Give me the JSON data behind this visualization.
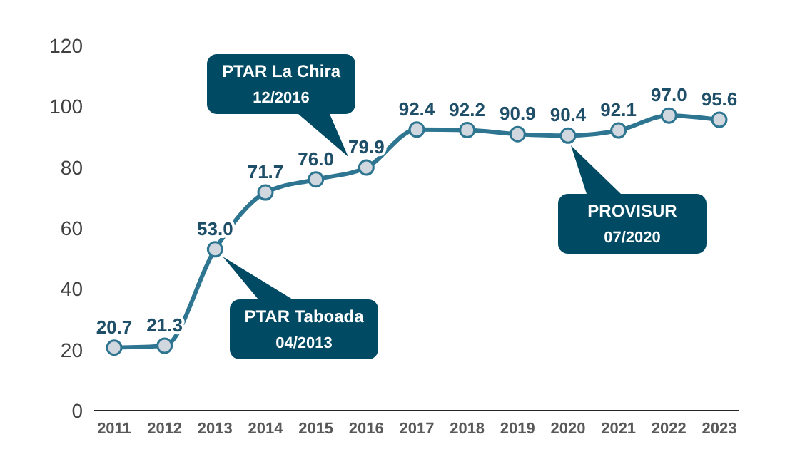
{
  "chart_data": {
    "type": "line",
    "categories": [
      "2011",
      "2012",
      "2013",
      "2014",
      "2015",
      "2016",
      "2017",
      "2018",
      "2019",
      "2020",
      "2021",
      "2022",
      "2023"
    ],
    "series": [
      {
        "color": "#2e7591",
        "values": [
          20.7,
          21.3,
          53.0,
          71.7,
          76.0,
          79.9,
          92.4,
          92.2,
          90.9,
          90.4,
          92.1,
          97.0,
          95.6
        ],
        "value_labels": [
          "20.7",
          "21.3",
          "53.0",
          "71.7",
          "76.0",
          "79.9",
          "92.4",
          "92.2",
          "90.9",
          "90.4",
          "92.1",
          "97.0",
          "95.6"
        ]
      }
    ],
    "ylim": [
      0,
      120
    ],
    "yticks": [
      0,
      20,
      40,
      60,
      80,
      100,
      120
    ],
    "grid": false,
    "legend": false,
    "marker": "circle",
    "line_style": "solid",
    "annotations": [
      "PTAR La Chira\n12/2016",
      "PTAR Taboada\n04/2013",
      "PROVISUR\n07/2020"
    ]
  }
}
